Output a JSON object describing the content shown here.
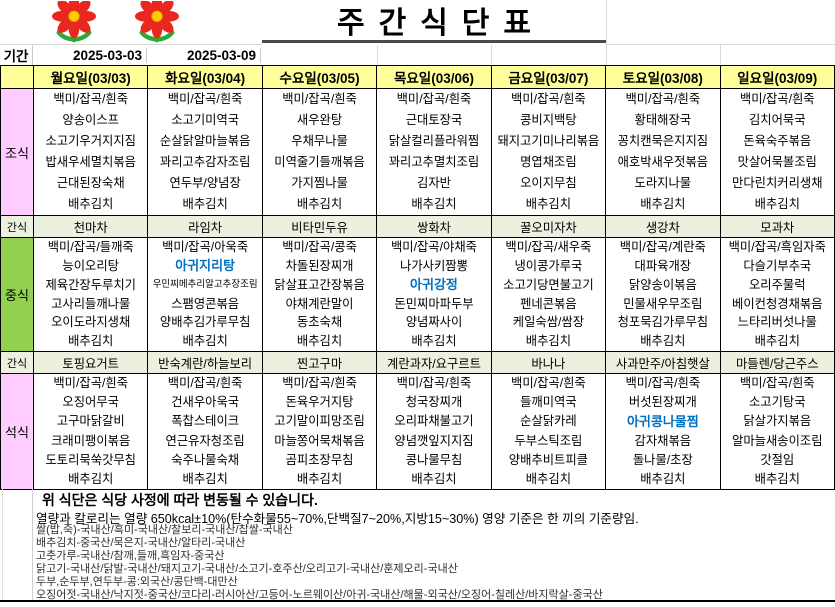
{
  "title": "주간식단표",
  "period": {
    "label": "기간",
    "start": "2025-03-03",
    "end": "2025-03-09"
  },
  "days": [
    "월요일(03/03)",
    "화요일(03/04)",
    "수요일(03/05)",
    "목요일(03/06)",
    "금요일(03/07)",
    "토요일(03/08)",
    "일요일(03/09)"
  ],
  "meal_sections": [
    {
      "id": "breakfast",
      "label": "조식",
      "type": "meal",
      "columns": [
        [
          "백미/잡곡/흰죽",
          "양송이스프",
          "소고기우거지지짐",
          "밥새우세멸치볶음",
          "근대된장숙채",
          "배추김치"
        ],
        [
          "백미/잡곡/흰죽",
          "소고기미역국",
          "순살닭알마늘볶음",
          "꽈리고추감자조림",
          "연두부/양념장",
          "배추김치"
        ],
        [
          "백미/잡곡/흰죽",
          "새우완탕",
          "우채무나물",
          "미역줄기들깨볶음",
          "가지찜나물",
          "배추김치"
        ],
        [
          "백미/잡곡/흰죽",
          "근대토장국",
          "닭살컬리플라워찜",
          "꽈리고추멸치조림",
          "김자반",
          "배추김치"
        ],
        [
          "백미/잡곡/흰죽",
          "콩비지백탕",
          "돼지고기미나리볶음",
          "명엽채조림",
          "오이지무침",
          "배추김치"
        ],
        [
          "백미/잡곡/흰죽",
          "황태해장국",
          "꽁치캔묵은지지짐",
          "애호박새우젓볶음",
          "도라지나물",
          "배추김치"
        ],
        [
          "백미/잡곡/흰죽",
          "김치어묵국",
          "돈육숙주볶음",
          "맛살어묵볼조림",
          "만다린치커리생채",
          "배추김치"
        ]
      ]
    },
    {
      "id": "snack1",
      "label": "간식",
      "type": "snack",
      "items": [
        "천마차",
        "라임차",
        "비타민두유",
        "쌍화차",
        "꿀오미자차",
        "생강차",
        "모과차"
      ]
    },
    {
      "id": "lunch",
      "label": "중식",
      "type": "meal",
      "columns": [
        [
          "백미/잡곡/들깨죽",
          "능이오리탕",
          "제육간장두루치기",
          "고사리들깨나물",
          "오이도라지생채",
          "배추김치"
        ],
        [
          "백미/잡곡/아욱죽",
          "아귀지리탕",
          "우민찌메추리알고추장조림",
          "스팸영콘볶음",
          "양배추김가루무침",
          "배추김치"
        ],
        [
          "백미/잡곡/콩죽",
          "차돌된장찌개",
          "닭살표고간장볶음",
          "야채계란말이",
          "동초숙채",
          "배추김치"
        ],
        [
          "백미/잡곡/야채죽",
          "나가사키짬뽕",
          "아귀강정",
          "돈민찌마파두부",
          "양념짜사이",
          "배추김치"
        ],
        [
          "백미/잡곡/새우죽",
          "냉이콩가루국",
          "소고기당면불고기",
          "펜네콘볶음",
          "케일숙쌈/쌈장",
          "배추김치"
        ],
        [
          "백미/잡곡/계란죽",
          "대파육개장",
          "닭양송이볶음",
          "민물새우무조림",
          "청포묵김가루무침",
          "배추김치"
        ],
        [
          "백미/잡곡/흑임자죽",
          "다슬기부추국",
          "오리주물럭",
          "베이컨청경채볶음",
          "느타리버섯나물",
          "배추김치"
        ]
      ]
    },
    {
      "id": "snack2",
      "label": "간식",
      "type": "snack",
      "items": [
        "토핑요거트",
        "반숙계란/하늘보리",
        "찐고구마",
        "계란과자/요구르트",
        "바나나",
        "사과만주/아침햇살",
        "마들렌/당근주스"
      ]
    },
    {
      "id": "dinner",
      "label": "석식",
      "type": "meal",
      "columns": [
        [
          "백미/잡곡/흰죽",
          "오징어무국",
          "고구마닭갈비",
          "크래미팽이볶음",
          "도토리묵쑥갓무침",
          "배추김치"
        ],
        [
          "백미/잡곡/흰죽",
          "건새우아욱국",
          "폭찹스테이크",
          "연근유자청조림",
          "숙주나물숙채",
          "배추김치"
        ],
        [
          "백미/잡곡/흰죽",
          "돈육우거지탕",
          "고기말이피망조림",
          "마늘쫑어묵채볶음",
          "곰피초장무침",
          "배추김치"
        ],
        [
          "백미/잡곡/흰죽",
          "청국장찌개",
          "오리파채불고기",
          "양념깻잎지지짐",
          "콩나물무침",
          "배추김치"
        ],
        [
          "백미/잡곡/흰죽",
          "들깨미역국",
          "순살닭카레",
          "두부스틱조림",
          "양배추비트피클",
          "배추김치"
        ],
        [
          "백미/잡곡/흰죽",
          "버섯된장찌개",
          "아귀콩나물찜",
          "감자채볶음",
          "돌나물/초장",
          "배추김치"
        ],
        [
          "백미/잡곡/흰죽",
          "소고기탕국",
          "닭살가지볶음",
          "알마늘새송이조림",
          "갓절임",
          "배추김치"
        ]
      ]
    }
  ],
  "highlighted_items": [
    "아귀지리탕",
    "아귀강정",
    "아귀콩나물찜"
  ],
  "small_font_items": [
    "우민찌메추리알고추장조림"
  ],
  "notes": {
    "line1": "위 식단은 식당 사정에 따라 변동될 수 있습니다.",
    "line2": "열량과 칼로리는 열량 650kcal±10%(탄수화물55~70%,단백질7~20%,지방15~30%) 영양 기준은 한 끼의 기준량임."
  },
  "origins": [
    "쌀(밥,죽)-국내산/흑미-국내산/찰보리-국내산/찹쌀-국내산",
    "배추김치-중국산/묵은지-국내산/알타리-국내산",
    "고춧가루-국내산/참깨,들깨,흑임자-중국산",
    "닭고기-국내산/닭발-국내산/돼지고기-국내산/소고기-호주산/오리고기-국내산/훈제오리-국내산",
    "두부,순두부,연두부-콩:외국산/콩단백-대만산",
    "오징어젓-국내산/낙지젓-중국산/코다리-러시아산/고등어-노르웨이산/아귀-국내산/해물-외국산/오징어-칠레산/바지락살-중국산"
  ],
  "colors": {
    "header_bg": "#FFFF99",
    "breakfast_dinner_label_bg": "#FFCCFF",
    "lunch_label_bg": "#92D050",
    "snack_row_bg": "#EBF1DE",
    "highlight_text": "#0070C0",
    "flower_red": "#E9271E",
    "flower_center": "#FFCC00",
    "flower_green": "#2EA836"
  }
}
